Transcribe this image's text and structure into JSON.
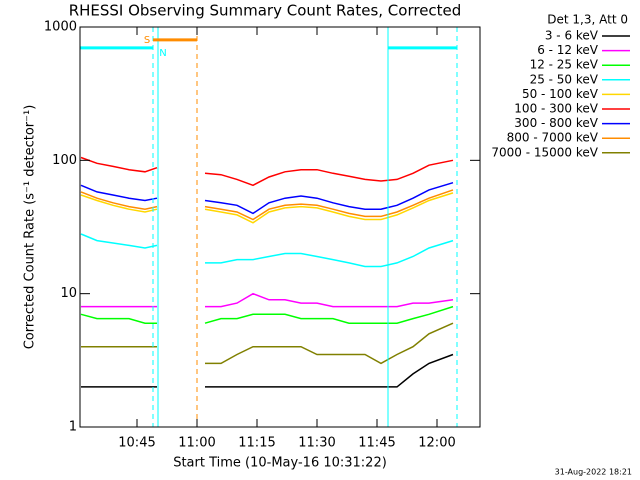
{
  "chart_data": {
    "type": "line",
    "title": "RHESSI Observing Summary Count Rates, Corrected",
    "x_label": "Start Time (10-May-16 10:31:22)",
    "y_label": "Corrected Count Rate (s⁻¹ detector⁻¹)",
    "legend_title": "Det 1,3, Att 0",
    "footer": "31-Aug-2022 18:21",
    "yscale": "log",
    "legend": "outside-right",
    "xlim": [
      630.75,
      730.75
    ],
    "ylim": [
      1,
      1000
    ],
    "yticks": [
      1,
      10,
      100,
      1000
    ],
    "xticks": [
      {
        "value": 645,
        "label": "10:45"
      },
      {
        "value": 660,
        "label": "11:00"
      },
      {
        "value": 675,
        "label": "11:15"
      },
      {
        "value": 690,
        "label": "11:30"
      },
      {
        "value": 705,
        "label": "11:45"
      },
      {
        "value": 720,
        "label": "12:00"
      }
    ],
    "x": [
      631,
      635,
      639,
      643,
      647,
      650,
      656,
      662,
      666,
      670,
      674,
      678,
      682,
      686,
      690,
      694,
      698,
      702,
      706,
      710,
      714,
      718,
      724
    ],
    "series": [
      {
        "name": "3 - 6 keV",
        "color": "#000000",
        "values": [
          2,
          2,
          2,
          2,
          2,
          2,
          null,
          2,
          2,
          2,
          2,
          2,
          2,
          2,
          2,
          2,
          2,
          2,
          2,
          2,
          2.5,
          3,
          3.5
        ]
      },
      {
        "name": "6 - 12 keV",
        "color": "#ff00ff",
        "values": [
          8,
          8,
          8,
          8,
          8,
          8,
          null,
          8,
          8,
          8.5,
          10,
          9,
          9,
          8.5,
          8.5,
          8,
          8,
          8,
          8,
          8,
          8.5,
          8.5,
          9
        ]
      },
      {
        "name": "12 - 25 keV",
        "color": "#00ff00",
        "values": [
          7,
          6.5,
          6.5,
          6.5,
          6,
          6,
          null,
          6,
          6.5,
          6.5,
          7,
          7,
          7,
          6.5,
          6.5,
          6.5,
          6,
          6,
          6,
          6,
          6.5,
          7,
          8
        ]
      },
      {
        "name": "25 - 50 keV",
        "color": "#00ffff",
        "values": [
          28,
          25,
          24,
          23,
          22,
          23,
          null,
          17,
          17,
          18,
          18,
          19,
          20,
          20,
          19,
          18,
          17,
          16,
          16,
          17,
          19,
          22,
          25
        ]
      },
      {
        "name": "50 - 100 keV",
        "color": "#ffd700",
        "values": [
          55,
          50,
          46,
          43,
          41,
          43,
          null,
          43,
          41,
          39,
          34,
          41,
          44,
          45,
          44,
          41,
          38,
          36,
          36,
          39,
          44,
          50,
          57
        ]
      },
      {
        "name": "100 - 300 keV",
        "color": "#ff0000",
        "values": [
          105,
          95,
          90,
          85,
          82,
          88,
          null,
          80,
          78,
          72,
          65,
          75,
          82,
          85,
          85,
          80,
          76,
          72,
          70,
          72,
          80,
          92,
          100
        ]
      },
      {
        "name": "300 - 800 keV",
        "color": "#0000ff",
        "values": [
          65,
          58,
          55,
          52,
          50,
          52,
          null,
          50,
          48,
          46,
          40,
          48,
          52,
          54,
          52,
          48,
          45,
          43,
          43,
          46,
          52,
          60,
          68
        ]
      },
      {
        "name": "800 - 7000 keV",
        "color": "#ff8c00",
        "values": [
          58,
          52,
          48,
          45,
          43,
          45,
          null,
          45,
          43,
          41,
          36,
          43,
          46,
          47,
          46,
          43,
          40,
          38,
          38,
          41,
          46,
          52,
          60
        ]
      },
      {
        "name": "7000 - 15000 keV",
        "color": "#808000",
        "values": [
          4,
          4,
          4,
          4,
          4,
          4,
          null,
          3,
          3,
          3.5,
          4,
          4,
          4,
          4,
          3.5,
          3.5,
          3.5,
          3.5,
          3,
          3.5,
          4,
          5,
          6
        ]
      }
    ],
    "markers": [
      {
        "x": 649,
        "color": "#00ffff",
        "dashed": true
      },
      {
        "x": 650.25,
        "color": "#00ffff",
        "dashed": false
      },
      {
        "x": 660,
        "color": "#ff8c00",
        "dashed": true
      },
      {
        "x": 707.75,
        "color": "#00ffff",
        "dashed": false
      },
      {
        "x": 725,
        "color": "#00ffff",
        "dashed": true
      }
    ],
    "bars": [
      {
        "x0": 630.75,
        "x1": 649,
        "y": 697,
        "color": "#00ffff"
      },
      {
        "x0": 649,
        "x1": 660,
        "y": 800,
        "color": "#ff8c00"
      },
      {
        "x0": 707.75,
        "x1": 725,
        "y": 697,
        "color": "#00ffff"
      }
    ],
    "annotations": [
      {
        "text": "S",
        "x": 647.5,
        "y": 800,
        "color": "#ff8c00"
      },
      {
        "text": "N",
        "x": 651.5,
        "y": 640,
        "color": "#00ffff"
      }
    ]
  }
}
